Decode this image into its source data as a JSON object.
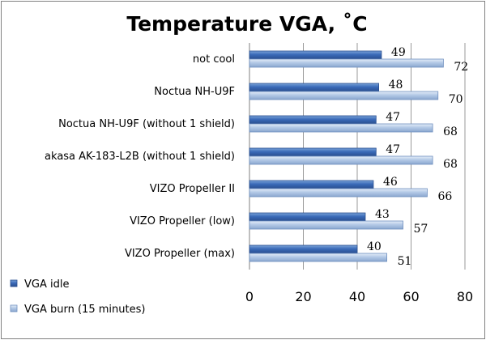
{
  "chart_data": {
    "type": "bar",
    "orientation": "horizontal",
    "title": "Temperature VGA, ˚C",
    "categories": [
      "not cool",
      "Noctua NH-U9F",
      "Noctua NH-U9F (without 1 shield)",
      "akasa AK-183-L2B (without 1 shield)",
      "VIZO Propeller II",
      "VIZO Propeller (low)",
      "VIZO Propeller (max)"
    ],
    "series": [
      {
        "name": "VGA idle",
        "values": [
          49,
          48,
          47,
          47,
          46,
          43,
          40
        ],
        "color": "#4f81bd"
      },
      {
        "name": "VGA burn (15 minutes)",
        "values": [
          72,
          70,
          68,
          68,
          66,
          57,
          51
        ],
        "color": "#b9cde6"
      }
    ],
    "xlim": [
      0,
      80
    ],
    "xticks": [
      0,
      20,
      40,
      60,
      80
    ],
    "grid": true,
    "legend": "bottom-left"
  }
}
